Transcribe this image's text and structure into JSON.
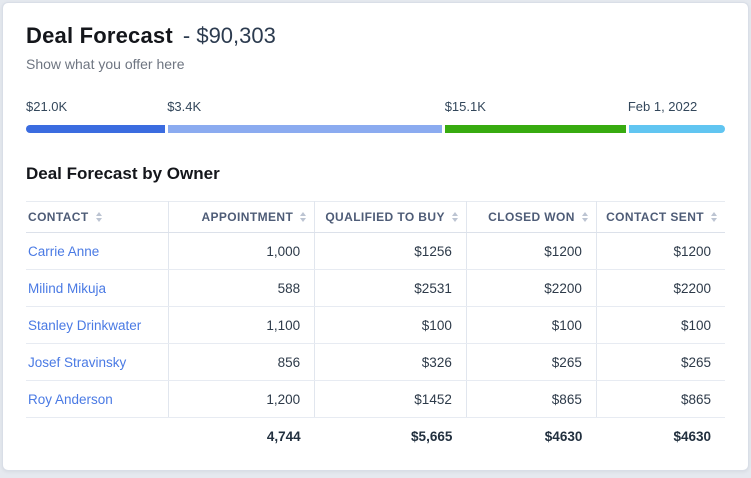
{
  "header": {
    "title": "Deal Forecast",
    "value": "- $90,303",
    "subtitle": "Show what you offer here"
  },
  "progress": {
    "segments": [
      {
        "label": "$21.0K",
        "color": "#3b6ce0",
        "width_pct": 20.2
      },
      {
        "label": "$3.4K",
        "color": "#8babf0",
        "width_pct": 39.7
      },
      {
        "label": "$15.1K",
        "color": "#38ab10",
        "width_pct": 26.2
      },
      {
        "label": "Feb 1, 2022",
        "color": "#61c5f1",
        "width_pct": 13.9
      }
    ]
  },
  "section": {
    "title": "Deal Forecast by Owner"
  },
  "table": {
    "columns": [
      {
        "label": "CONTACT",
        "align": "left",
        "width_pct": 20.4
      },
      {
        "label": "APPOINTMENT",
        "align": "right",
        "width_pct": 20.9
      },
      {
        "label": "QUALIFIED TO BUY",
        "align": "right",
        "width_pct": 21.7
      },
      {
        "label": "CLOSED WON",
        "align": "right",
        "width_pct": 18.6
      },
      {
        "label": "CONTACT SENT",
        "align": "right",
        "width_pct": 18.4
      }
    ],
    "rows": [
      {
        "contact": "Carrie Anne",
        "values": [
          "1,000",
          "$1256",
          "$1200",
          "$1200"
        ]
      },
      {
        "contact": "Milind Mikuja",
        "values": [
          "588",
          "$2531",
          "$2200",
          "$2200"
        ]
      },
      {
        "contact": "Stanley Drinkwater",
        "values": [
          "1,100",
          "$100",
          "$100",
          "$100"
        ]
      },
      {
        "contact": "Josef Stravinsky",
        "values": [
          "856",
          "$326",
          "$265",
          "$265"
        ]
      },
      {
        "contact": "Roy Anderson",
        "values": [
          "1,200",
          "$1452",
          "$865",
          "$865"
        ]
      }
    ],
    "totals": [
      "",
      "4,744",
      "$5,665",
      "$4630",
      "$4630"
    ]
  }
}
